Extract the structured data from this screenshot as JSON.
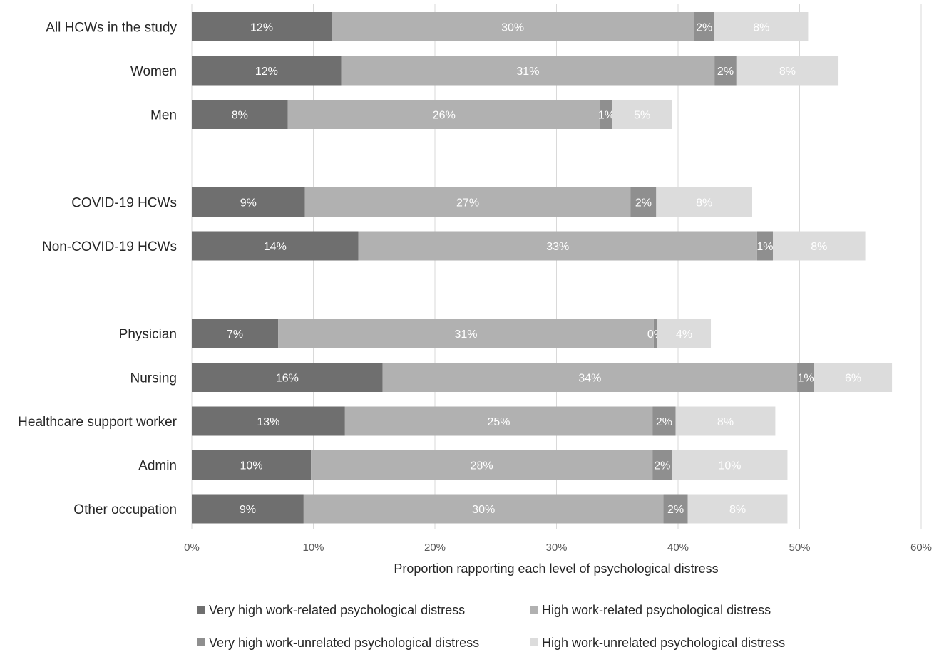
{
  "chart_data": {
    "type": "bar",
    "orientation": "horizontal",
    "stacked": true,
    "xlabel": "Proportion rapporting each level of psychological distress",
    "xlim": [
      0,
      60
    ],
    "xticks": [
      0,
      10,
      20,
      30,
      40,
      50,
      60
    ],
    "xtick_labels": [
      "0%",
      "10%",
      "20%",
      "30%",
      "40%",
      "50%",
      "60%"
    ],
    "grid": true,
    "legend_position": "bottom",
    "category_groups": [
      [
        "All HCWs in the study",
        "Women",
        "Men"
      ],
      [
        "COVID-19 HCWs",
        "Non-COVID-19 HCWs"
      ],
      [
        "Physician",
        "Nursing",
        "Healthcare support worker",
        "Admin",
        "Other occupation"
      ]
    ],
    "categories": [
      "All HCWs in the study",
      "Women",
      "Men",
      "COVID-19 HCWs",
      "Non-COVID-19 HCWs",
      "Physician",
      "Nursing",
      "Healthcare support worker",
      "Admin",
      "Other occupation"
    ],
    "series": [
      {
        "name": "Very high work-related psychological distress",
        "color": "#6f6f6f",
        "label_color": "#ffffff",
        "values": [
          11.5,
          12.3,
          7.9,
          9.3,
          13.7,
          7.1,
          15.7,
          12.6,
          9.8,
          9.2
        ],
        "labels": [
          "12%",
          "12%",
          "8%",
          "9%",
          "14%",
          "7%",
          "16%",
          "13%",
          "10%",
          "9%"
        ]
      },
      {
        "name": "High work-related psychological distress",
        "color": "#b1b1b1",
        "label_color": "#ffffff",
        "values": [
          29.8,
          30.7,
          25.7,
          26.8,
          32.8,
          30.9,
          34.1,
          25.3,
          28.1,
          29.6
        ],
        "labels": [
          "30%",
          "31%",
          "26%",
          "27%",
          "33%",
          "31%",
          "34%",
          "25%",
          "28%",
          "30%"
        ]
      },
      {
        "name": "Very high work-unrelated psychological distress",
        "color": "#8f8f8f",
        "label_color": "#ffffff",
        "values": [
          1.7,
          1.8,
          1.0,
          2.1,
          1.3,
          0.3,
          1.4,
          1.9,
          1.6,
          2.0
        ],
        "labels": [
          "2%",
          "2%",
          "1%",
          "2%",
          "1%",
          "0%",
          "1%",
          "2%",
          "2%",
          "2%"
        ]
      },
      {
        "name": "High work-unrelated psychological distress",
        "color": "#dcdcdc",
        "label_color": "#ffffff",
        "values": [
          7.7,
          8.4,
          4.9,
          7.9,
          7.6,
          4.4,
          6.4,
          8.2,
          9.5,
          8.2
        ],
        "labels": [
          "8%",
          "8%",
          "5%",
          "8%",
          "8%",
          "4%",
          "6%",
          "8%",
          "10%",
          "8%"
        ]
      }
    ]
  }
}
